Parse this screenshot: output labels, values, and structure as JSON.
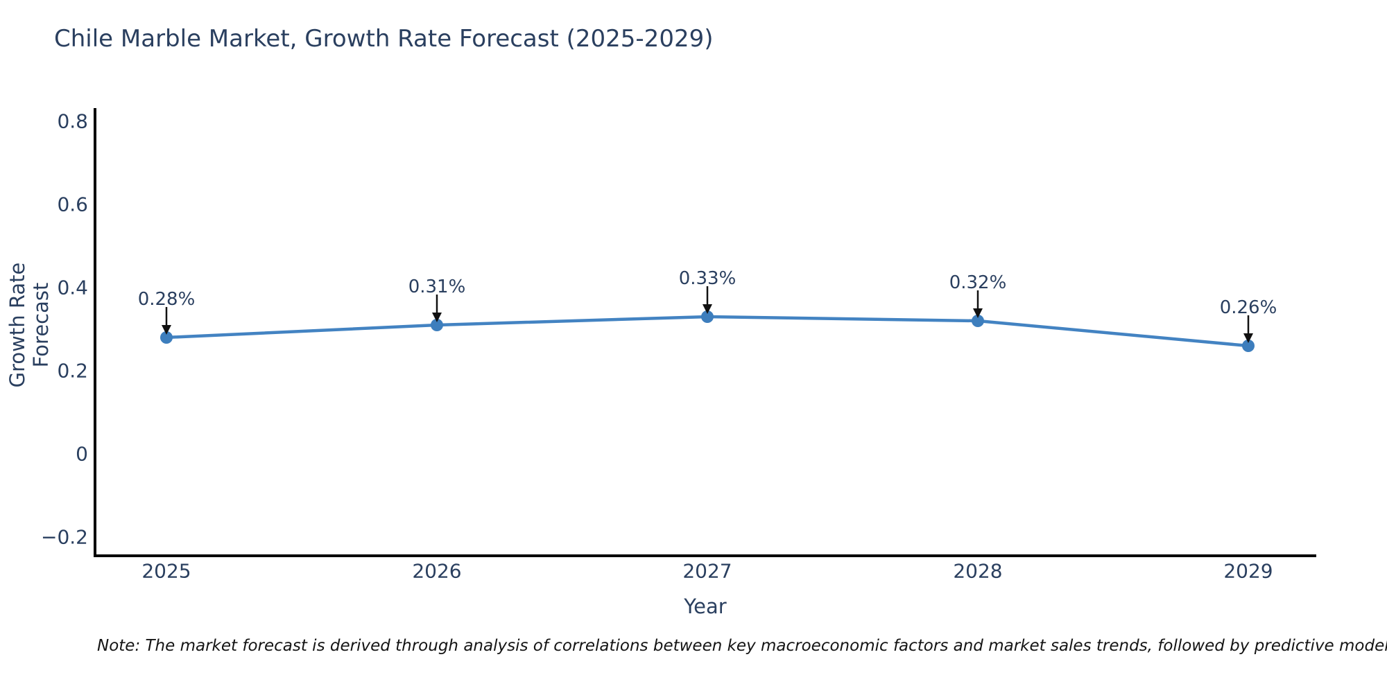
{
  "title": "Chile Marble Market, Growth Rate Forecast (2025-2029)",
  "note": "Note: The market forecast is derived through analysis of correlations between key macroeconomic factors and market sales trends, followed by predictive modeling to project future sales.",
  "chart_data": {
    "type": "line",
    "title": "Chile Marble Market, Growth Rate Forecast (2025-2029)",
    "xlabel": "Year",
    "ylabel": "Growth Rate Forecast",
    "categories": [
      "2025",
      "2026",
      "2027",
      "2028",
      "2029"
    ],
    "values": [
      0.28,
      0.31,
      0.33,
      0.32,
      0.26
    ],
    "point_labels": [
      "0.28%",
      "0.31%",
      "0.33%",
      "0.32%",
      "0.26%"
    ],
    "series": [
      {
        "name": "Growth Rate Forecast",
        "values": [
          0.28,
          0.31,
          0.33,
          0.32,
          0.26
        ]
      }
    ],
    "yticks": [
      {
        "v": 0.8,
        "label": "0.8"
      },
      {
        "v": 0.6,
        "label": "0.6"
      },
      {
        "v": 0.4,
        "label": "0.4"
      },
      {
        "v": 0.2,
        "label": "0.2"
      },
      {
        "v": 0,
        "label": "0"
      },
      {
        "v": -0.2,
        "label": "−0.2"
      }
    ],
    "ylim": [
      -0.245,
      0.828
    ],
    "grid": false,
    "legend": "none",
    "annotations_unit": "%",
    "colors": {
      "line": "#4383c2",
      "marker": "#3d7ebd",
      "axis": "#000000",
      "text": "#2a3f5f",
      "arrow": "#111111",
      "background": "#ffffff"
    }
  }
}
